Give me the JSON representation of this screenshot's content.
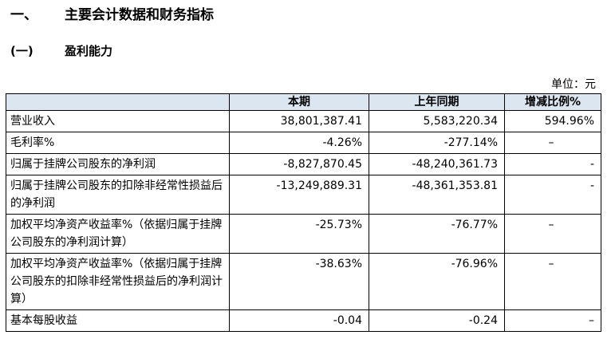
{
  "section": {
    "number": "一、",
    "title": "主要会计数据和财务指标"
  },
  "subsection": {
    "number": "(一)",
    "title": "盈利能力"
  },
  "unit_label": "单位：元",
  "table": {
    "headers": [
      "",
      "本期",
      "上年同期",
      "增减比例%"
    ],
    "rows": [
      {
        "label": "营业收入",
        "current": "38,801,387.41",
        "previous": "5,583,220.34",
        "change": "594.96%"
      },
      {
        "label": "毛利率%",
        "current": "-4.26%",
        "previous": "-277.14%",
        "change": "–"
      },
      {
        "label": "归属于挂牌公司股东的净利润",
        "current": "-8,827,870.45",
        "previous": "-48,240,361.73",
        "change": "-"
      },
      {
        "label": "归属于挂牌公司股东的扣除非经常性损益后的净利润",
        "current": "-13,249,889.31",
        "previous": "-48,361,353.81",
        "change": "-"
      },
      {
        "label": "加权平均净资产收益率%（依据归属于挂牌公司股东的净利润计算）",
        "current": "-25.73%",
        "previous": "-76.77%",
        "change": "–"
      },
      {
        "label": "加权平均净资产收益率%（依据归属于挂牌公司股东的扣除非经常性损益后的净利润计算）",
        "current": "-38.63%",
        "previous": "-76.96%",
        "change": "–"
      },
      {
        "label": "基本每股收益",
        "current": "-0.04",
        "previous": "-0.24",
        "change": "–"
      }
    ]
  }
}
